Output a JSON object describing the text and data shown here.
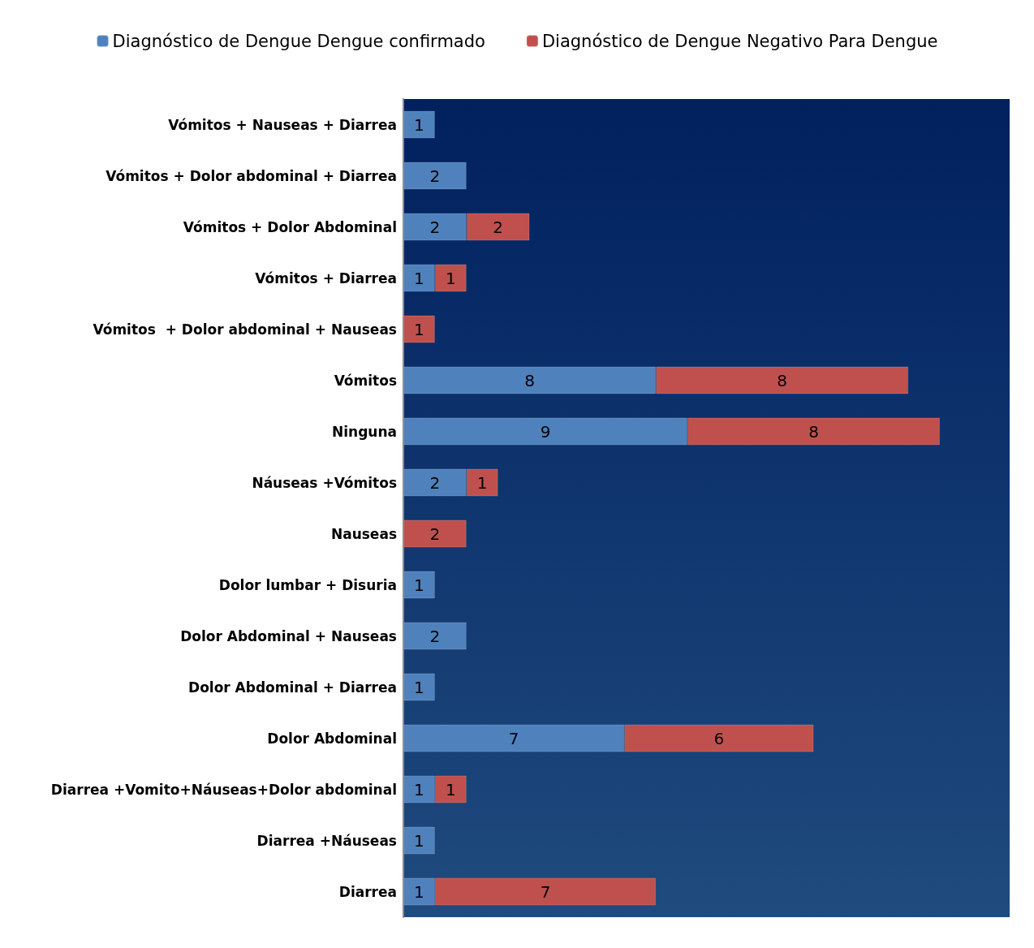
{
  "chart_data": {
    "type": "bar",
    "orientation": "horizontal",
    "stacked": true,
    "data_labels": true,
    "grid": false,
    "legend": "top",
    "tick_labels": "y",
    "categories": [
      "Vómitos + Nauseas + Diarrea",
      "Vómitos + Dolor abdominal + Diarrea",
      "Vómitos + Dolor Abdominal",
      "Vómitos + Diarrea",
      "Vómitos  + Dolor abdominal + Nauseas",
      "Vómitos",
      "Ninguna",
      "Náuseas +Vómitos",
      "Nauseas",
      "Dolor lumbar + Disuria",
      "Dolor Abdominal + Nauseas",
      "Dolor Abdominal + Diarrea",
      "Dolor Abdominal",
      "Diarrea +Vomito+Náuseas+Dolor abdominal",
      "Diarrea +Náuseas",
      "Diarrea"
    ],
    "series": [
      {
        "name": "Diagnóstico de Dengue Dengue confirmado",
        "color": "#4f81bd",
        "values": [
          1,
          2,
          2,
          1,
          null,
          8,
          9,
          2,
          null,
          1,
          2,
          1,
          7,
          1,
          1,
          1
        ]
      },
      {
        "name": "Diagnóstico de Dengue Negativo Para Dengue",
        "color": "#c0504d",
        "values": [
          null,
          null,
          2,
          1,
          1,
          8,
          8,
          1,
          2,
          null,
          null,
          null,
          6,
          1,
          null,
          7
        ]
      }
    ]
  }
}
